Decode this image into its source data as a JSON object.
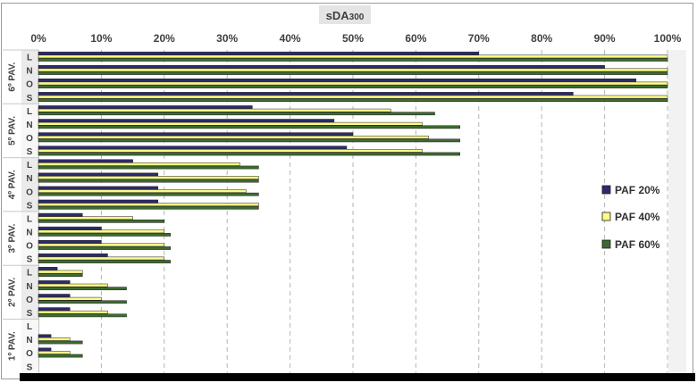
{
  "chart_data": {
    "type": "bar",
    "orientation": "horizontal",
    "title_main": "sDA",
    "title_sub": "300",
    "xlim": [
      0,
      100
    ],
    "x_ticks": [
      "0%",
      "10%",
      "20%",
      "30%",
      "40%",
      "50%",
      "60%",
      "70%",
      "80%",
      "90%",
      "100%"
    ],
    "grid": "vertical dashed",
    "legend_position": "right",
    "groups": [
      {
        "label": "6º PAV.",
        "rows": [
          {
            "label": "L",
            "values": [
              70,
              100,
              100
            ]
          },
          {
            "label": "N",
            "values": [
              90,
              100,
              100
            ]
          },
          {
            "label": "O",
            "values": [
              95,
              100,
              100
            ]
          },
          {
            "label": "S",
            "values": [
              85,
              100,
              100
            ]
          }
        ]
      },
      {
        "label": "5º PAV.",
        "rows": [
          {
            "label": "L",
            "values": [
              34,
              56,
              63
            ]
          },
          {
            "label": "N",
            "values": [
              47,
              61,
              67
            ]
          },
          {
            "label": "O",
            "values": [
              50,
              62,
              67
            ]
          },
          {
            "label": "S",
            "values": [
              49,
              61,
              67
            ]
          }
        ]
      },
      {
        "label": "4º PAV.",
        "rows": [
          {
            "label": "L",
            "values": [
              15,
              32,
              35
            ]
          },
          {
            "label": "N",
            "values": [
              19,
              35,
              35
            ]
          },
          {
            "label": "O",
            "values": [
              19,
              33,
              35
            ]
          },
          {
            "label": "S",
            "values": [
              19,
              35,
              35
            ]
          }
        ]
      },
      {
        "label": "3º PAV.",
        "rows": [
          {
            "label": "L",
            "values": [
              7,
              15,
              20
            ]
          },
          {
            "label": "N",
            "values": [
              10,
              20,
              21
            ]
          },
          {
            "label": "O",
            "values": [
              10,
              20,
              21
            ]
          },
          {
            "label": "S",
            "values": [
              11,
              20,
              21
            ]
          }
        ]
      },
      {
        "label": "2º PAV.",
        "rows": [
          {
            "label": "L",
            "values": [
              3,
              7,
              7
            ]
          },
          {
            "label": "N",
            "values": [
              5,
              11,
              14
            ]
          },
          {
            "label": "O",
            "values": [
              5,
              10,
              14
            ]
          },
          {
            "label": "S",
            "values": [
              5,
              11,
              14
            ]
          }
        ]
      },
      {
        "label": "1º PAV.",
        "rows": [
          {
            "label": "L",
            "values": [
              0,
              0,
              0
            ]
          },
          {
            "label": "N",
            "values": [
              2,
              5,
              7
            ]
          },
          {
            "label": "O",
            "values": [
              2,
              5,
              7
            ]
          },
          {
            "label": "S",
            "values": [
              0,
              0,
              0
            ]
          }
        ]
      }
    ],
    "series": [
      {
        "name": "PAF 20%",
        "color": "#2d2a6e"
      },
      {
        "name": "PAF 40%",
        "color": "#fbfb86"
      },
      {
        "name": "PAF 60%",
        "color": "#3d6b2f"
      }
    ]
  }
}
